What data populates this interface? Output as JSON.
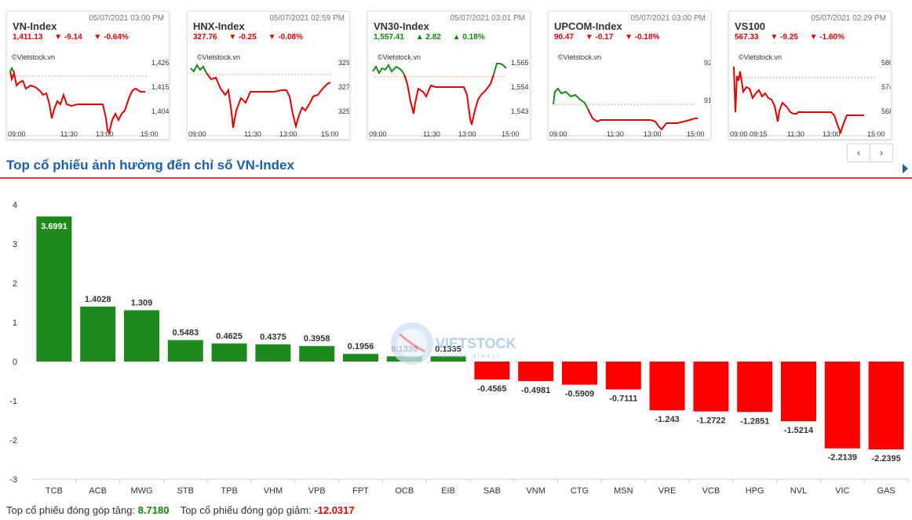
{
  "cards": [
    {
      "name": "VN-Index",
      "timestamp": "05/07/2021 03:00 PM",
      "value": "1,411.13",
      "change": "-9.14",
      "pct": "-0.64%",
      "dir": "down",
      "credit": "©Vietstock.vn",
      "yticks": [
        "1,426",
        "1,415",
        "1,404"
      ],
      "xticks": [
        "09:00",
        "11:30",
        "13:00",
        "15:00"
      ]
    },
    {
      "name": "HNX-Index",
      "timestamp": "05/07/2021 02:59 PM",
      "value": "327.76",
      "change": "-0.25",
      "pct": "-0.08%",
      "dir": "down",
      "credit": "©Vietstock.vn",
      "yticks": [
        "329",
        "327",
        "325"
      ],
      "xticks": [
        "09:00",
        "11:30",
        "13:00",
        "15:00"
      ]
    },
    {
      "name": "VN30-Index",
      "timestamp": "05/07/2021 03:01 PM",
      "value": "1,557.41",
      "change": "2.82",
      "pct": "0.18%",
      "dir": "up",
      "credit": "©Vietstock.vn",
      "yticks": [
        "1,565",
        "1,554",
        "1,543"
      ],
      "xticks": [
        "09:00",
        "11:30",
        "13:00",
        "15:00"
      ]
    },
    {
      "name": "UPCOM-Index",
      "timestamp": "05/07/2021 03:00 PM",
      "value": "90.47",
      "change": "-0.17",
      "pct": "-0.18%",
      "dir": "down",
      "credit": "©Vietstock.vn",
      "yticks": [
        "92",
        "91",
        ""
      ],
      "xticks": [
        "09:00",
        "11:30",
        "13:00",
        "15:00"
      ]
    },
    {
      "name": "VS100",
      "timestamp": "05/07/2021 02:29 PM",
      "value": "567.33",
      "change": "-9.25",
      "pct": "-1.60%",
      "dir": "down",
      "credit": "©Vietstock.vn",
      "yticks": [
        "580",
        "574",
        "568"
      ],
      "xticks": [
        "09:00 09:15",
        "11:30",
        "13:00",
        "15:00"
      ]
    }
  ],
  "nav": {
    "prev": "‹",
    "next": "›"
  },
  "section_title": "Top cổ phiếu ảnh hưởng đến chỉ số VN-Index",
  "watermark": "VIETSTOCK",
  "watermark_sub": "refresh always",
  "chart_data": {
    "type": "bar",
    "categories": [
      "TCB",
      "ACB",
      "MWG",
      "STB",
      "TPB",
      "VHM",
      "VPB",
      "FPT",
      "OCB",
      "EIB",
      "SAB",
      "VNM",
      "CTG",
      "MSN",
      "VRE",
      "VCB",
      "HPG",
      "NVL",
      "VIC",
      "GAS"
    ],
    "values": [
      3.6991,
      1.4028,
      1.309,
      0.5483,
      0.4625,
      0.4375,
      0.3958,
      0.1956,
      0.1339,
      0.1335,
      -0.4565,
      -0.4981,
      -0.5909,
      -0.7111,
      -1.243,
      -1.2722,
      -1.2851,
      -1.5214,
      -2.2139,
      -2.2395
    ],
    "labels": [
      "3.6991",
      "1.4028",
      "1.309",
      "0.5483",
      "0.4625",
      "0.4375",
      "0.3958",
      "0.1956",
      "0.1339",
      "0.1335",
      "-0.4565",
      "-0.4981",
      "-0.5909",
      "-0.7111",
      "-1.243",
      "-1.2722",
      "-1.2851",
      "-1.5214",
      "-2.2139",
      "-2.2395"
    ],
    "ylim": [
      -3,
      4
    ],
    "yticks": [
      "4",
      "3",
      "2",
      "1",
      "0",
      "-1",
      "-2",
      "-3"
    ],
    "colors": {
      "positive": "#1d8a1d",
      "negative": "#ff0000"
    },
    "grid": false
  },
  "footer": {
    "up_label": "Top cổ phiếu đóng góp tăng:",
    "up_value": "8.7180",
    "down_label": "Top cổ phiếu đóng góp giảm:",
    "down_value": "-12.0317"
  }
}
